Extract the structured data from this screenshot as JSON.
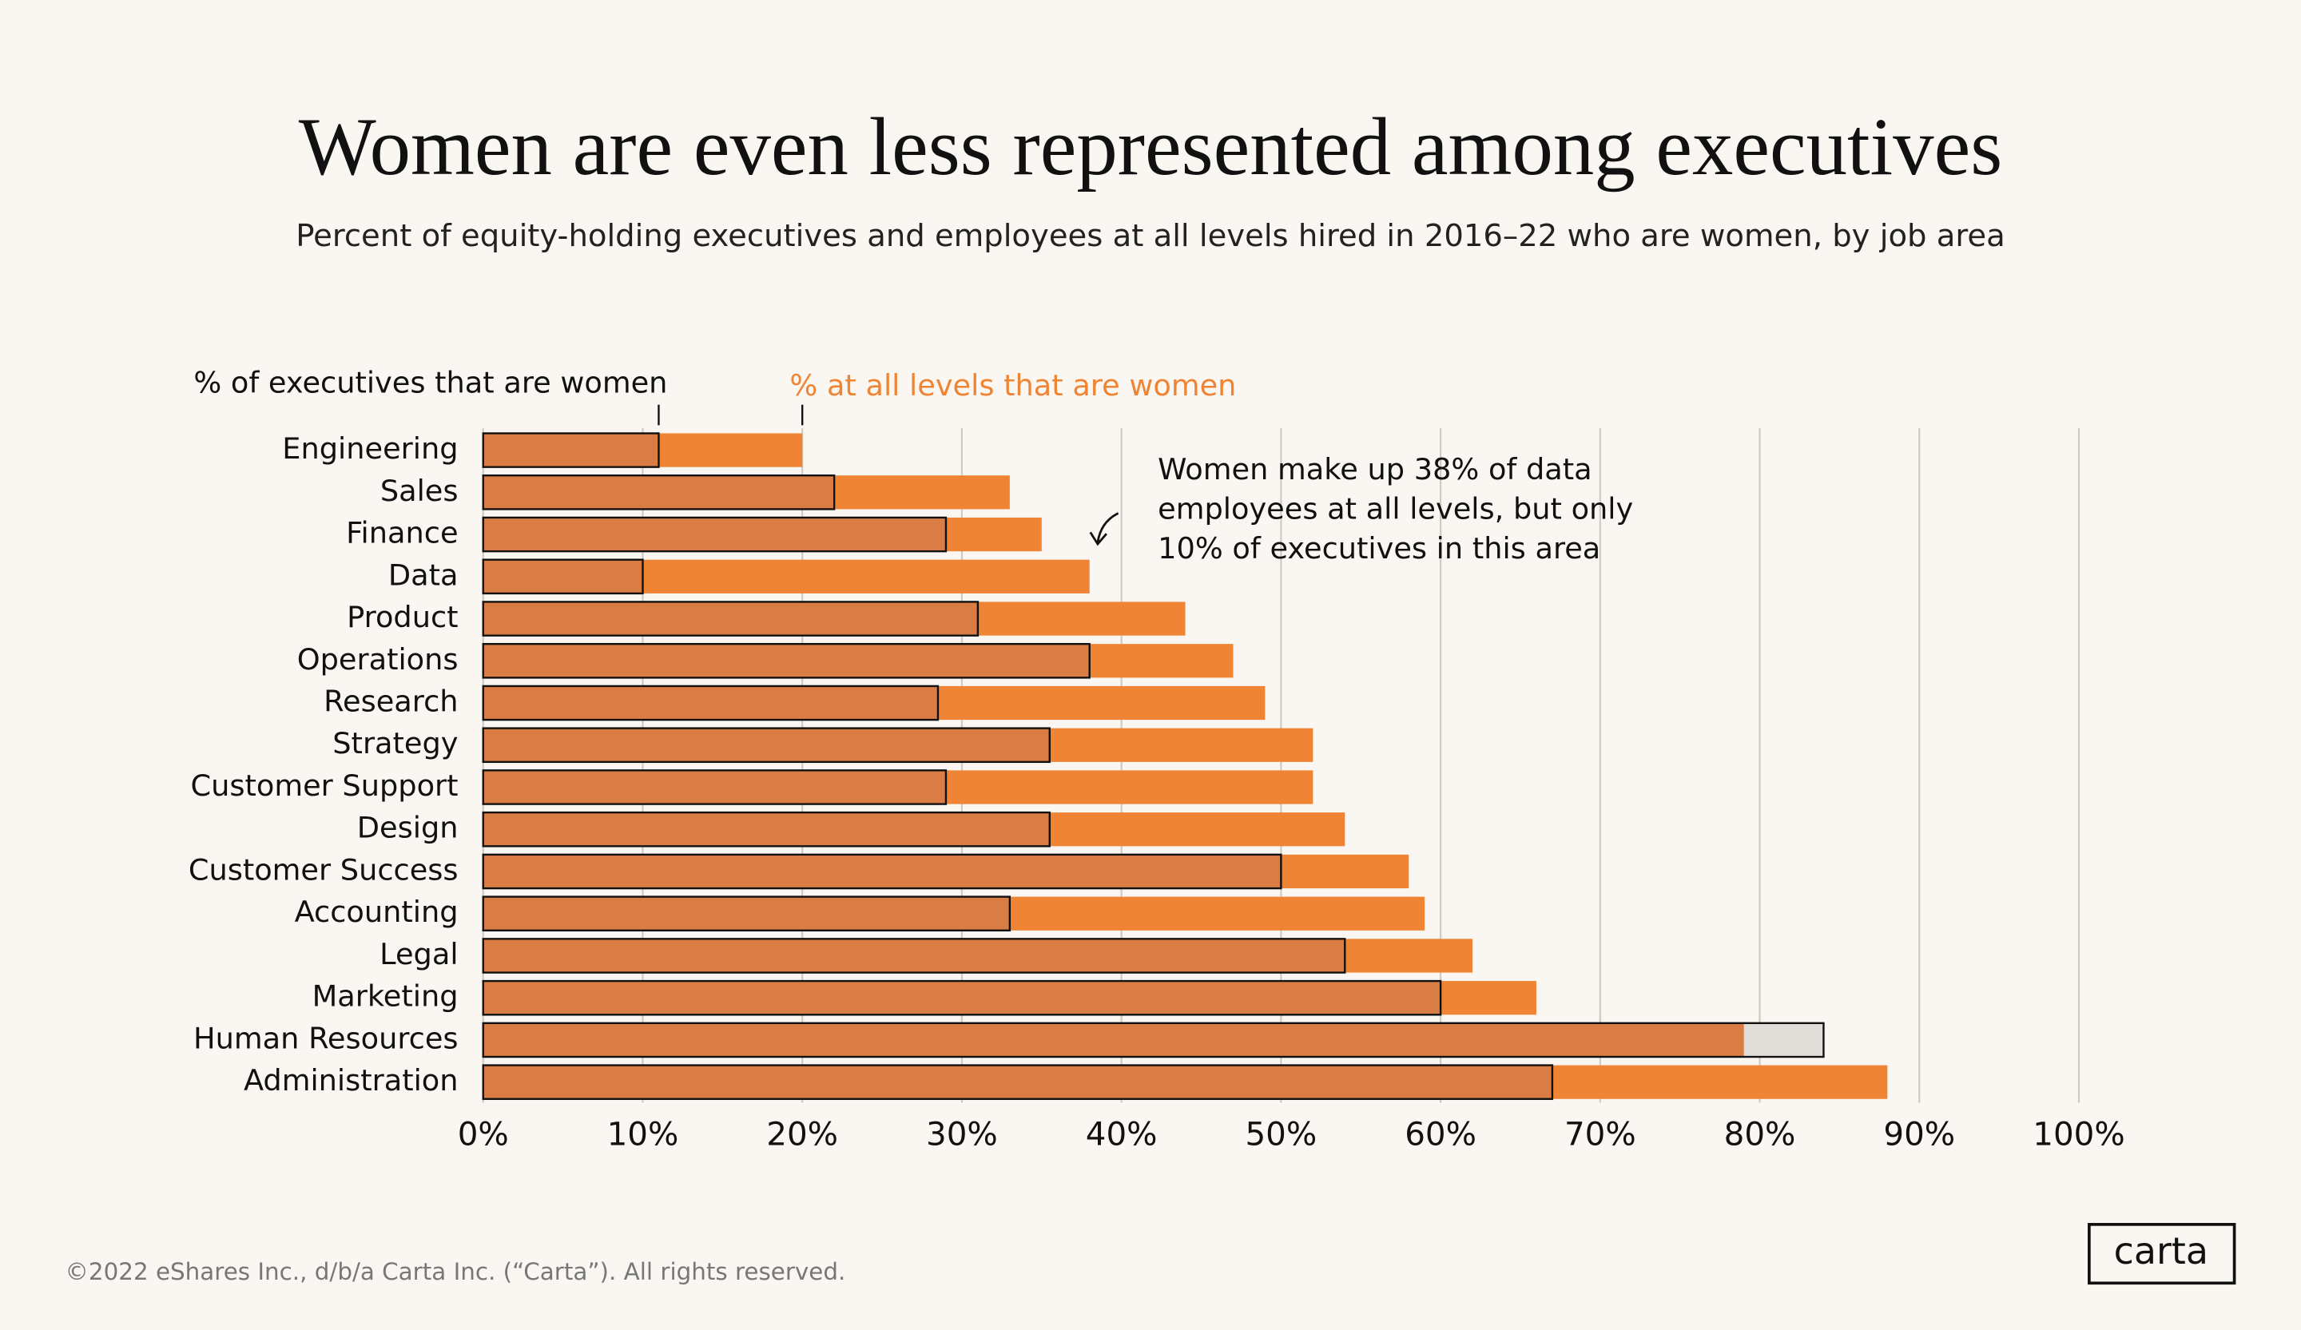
{
  "chart_data": {
    "type": "overlay-bar",
    "title": "Women are even less represented among executives",
    "subtitle": "Percent of equity-holding executives and employees at all levels hired in 2016–22 who are women, by job area",
    "categories": [
      "Engineering",
      "Sales",
      "Finance",
      "Data",
      "Product",
      "Operations",
      "Research",
      "Strategy",
      "Customer Support",
      "Design",
      "Customer Success",
      "Accounting",
      "Legal",
      "Marketing",
      "Human Resources",
      "Administration"
    ],
    "series": [
      {
        "name": "% of executives that are women",
        "color": "#d97d45",
        "values": [
          11,
          22,
          29,
          10,
          31,
          38,
          28.5,
          35.5,
          29,
          35.5,
          50,
          33,
          54,
          60,
          84,
          67
        ]
      },
      {
        "name": "% at all levels that are women",
        "color": "#ef8434",
        "values": [
          20,
          33,
          35,
          38,
          44,
          47,
          49,
          52,
          52,
          54,
          58,
          59,
          62,
          66,
          79,
          88
        ]
      }
    ],
    "annotation": [
      "Women make up 38% of data",
      "employees at all levels, but only",
      "10% of executives in this area"
    ],
    "xlim": [
      0,
      100
    ],
    "xticks": [
      {
        "value": 0,
        "label": "0%"
      },
      {
        "value": 10,
        "label": "10%"
      },
      {
        "value": 20,
        "label": "20%"
      },
      {
        "value": 30,
        "label": "30%"
      },
      {
        "value": 40,
        "label": "40%"
      },
      {
        "value": 50,
        "label": "50%"
      },
      {
        "value": 60,
        "label": "60%"
      },
      {
        "value": 70,
        "label": "70%"
      },
      {
        "value": 80,
        "label": "80%"
      },
      {
        "value": 90,
        "label": "90%"
      },
      {
        "value": 100,
        "label": "100%"
      }
    ],
    "grid": true,
    "footer": "©2022 eShares Inc., d/b/a Carta Inc. (“Carta”). All rights reserved.",
    "logo": "carta"
  }
}
